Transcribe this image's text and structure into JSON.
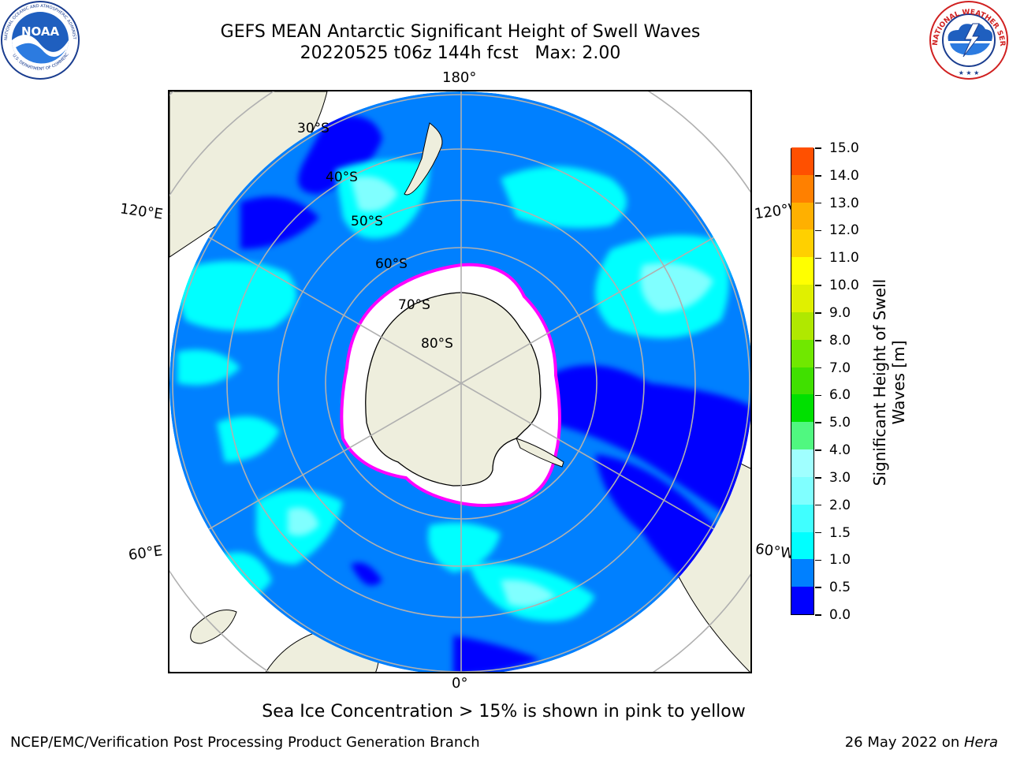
{
  "title_line1": "GEFS MEAN Antarctic Significant Height of Swell Waves",
  "title_line2": "20220525 t06z 144h fcst   Max: 2.00",
  "logos": {
    "noaa_text": "NOAA",
    "noaa_ring": "NATIONAL OCEANIC AND ATMOSPHERIC ADMINISTRATION",
    "noaa_ring_bottom": "U.S. DEPARTMENT OF COMMERCE",
    "nws_ring": "NATIONAL WEATHER SERVICE"
  },
  "map": {
    "projection": "south-polar-stereographic",
    "longitude_labels": {
      "top": "180°",
      "bottom": "0°",
      "upper_left": "120°E",
      "upper_right": "120°W",
      "lower_left": "60°E",
      "lower_right": "60°W"
    },
    "latitude_labels": [
      "30°S",
      "40°S",
      "50°S",
      "60°S",
      "70°S",
      "80°S"
    ],
    "max_value": 2.0
  },
  "colorbar": {
    "title": "Significant Height of Swell Waves [m]",
    "tick_labels": [
      "0.0",
      "0.5",
      "1.0",
      "1.5",
      "2.0",
      "3.0",
      "4.0",
      "5.0",
      "6.0",
      "7.0",
      "8.0",
      "9.0",
      "10.0",
      "11.0",
      "12.0",
      "13.0",
      "14.0",
      "15.0"
    ],
    "colors": [
      "#0000ff",
      "#0080ff",
      "#00ffff",
      "#40ffff",
      "#80ffff",
      "#a0ffff",
      "#50f880",
      "#00e000",
      "#40e000",
      "#70e800",
      "#b0e800",
      "#e0f000",
      "#ffff00",
      "#ffd000",
      "#ffb000",
      "#ff8000",
      "#ff5000",
      "#ff2000",
      "#ff0000"
    ]
  },
  "colors": {
    "land": "#eeeedd",
    "ice": "#ffffff",
    "ice_edge": "#ff00ff",
    "grid": "#b0b0b0"
  },
  "footnote": "Sea Ice Concentration > 15% is shown in pink to yellow",
  "credit": "NCEP/EMC/Verification Post Processing Product Generation Branch",
  "date_text": "26 May 2022 on ",
  "date_host": "Hera"
}
